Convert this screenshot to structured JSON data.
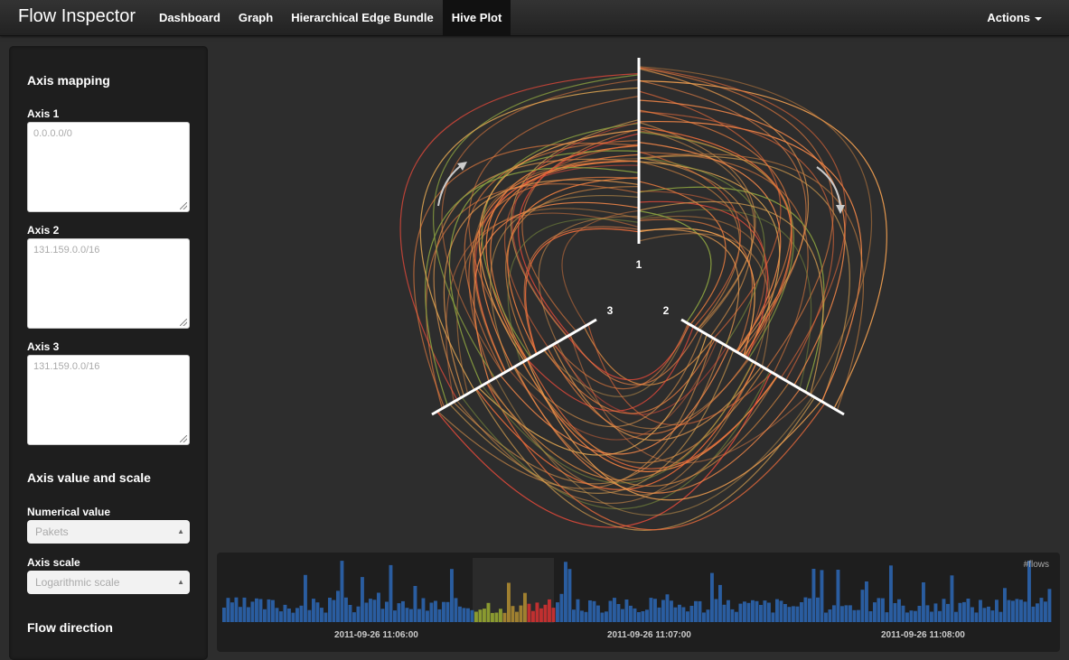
{
  "navbar": {
    "brand": "Flow Inspector",
    "items": [
      {
        "label": "Dashboard"
      },
      {
        "label": "Graph"
      },
      {
        "label": "Hierarchical Edge Bundle"
      },
      {
        "label": "Hive Plot"
      }
    ],
    "active": "Hive Plot",
    "actions_label": "Actions"
  },
  "sidebar": {
    "axis_mapping_heading": "Axis mapping",
    "axis1": {
      "label": "Axis 1",
      "placeholder": "0.0.0.0/0"
    },
    "axis2": {
      "label": "Axis 2",
      "placeholder": "131.159.0.0/16"
    },
    "axis3": {
      "label": "Axis 3",
      "placeholder": "131.159.0.0/16"
    },
    "value_scale_heading": "Axis value and scale",
    "numerical_value": {
      "label": "Numerical value",
      "selected": "Pakets"
    },
    "axis_scale": {
      "label": "Axis scale",
      "selected": "Logarithmic scale"
    },
    "flow_direction_heading": "Flow direction"
  },
  "hive": {
    "axis_labels": [
      "1",
      "2",
      "3"
    ],
    "edge_colors": [
      "#f08040",
      "#ff8c4a",
      "#e86a3a",
      "#f2a050",
      "#d9a050",
      "#e84a3a",
      "#8aa040",
      "#c88040"
    ]
  },
  "timeline": {
    "metric_label": "#flows",
    "ticks": [
      "2011-09-26 11:06:00",
      "2011-09-26 11:07:00",
      "2011-09-26 11:08:00"
    ],
    "bar_color": "#2a5da0",
    "selection_colors": [
      "#8a9a30",
      "#a08030",
      "#c03030"
    ]
  }
}
